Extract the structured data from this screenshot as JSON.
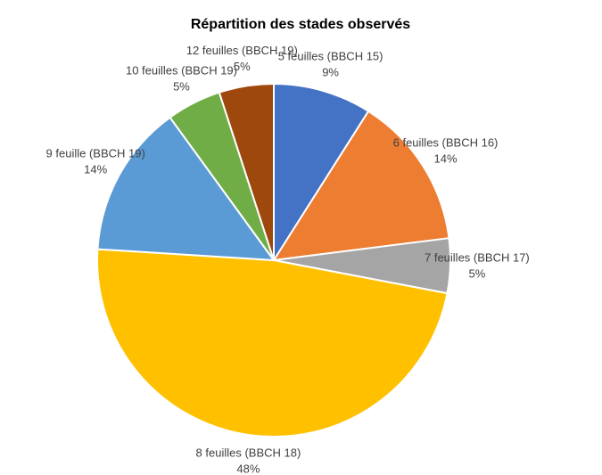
{
  "chart_data": {
    "type": "pie",
    "title": "Répartition des stades observés",
    "categories": [
      "5 feuilles (BBCH 15)",
      "6 feuilles (BBCH 16)",
      "7 feuilles (BBCH 17)",
      "8 feuilles (BBCH 18)",
      "9 feuille (BBCH 19)",
      "10 feuilles (BBCH 19)",
      "12 feuilles (BBCH 19)"
    ],
    "values": [
      9,
      14,
      5,
      48,
      14,
      5,
      5
    ],
    "value_labels": [
      "9%",
      "14%",
      "5%",
      "48%",
      "14%",
      "5%",
      "5%"
    ],
    "colors": [
      "#4472c4",
      "#ed7d31",
      "#a5a5a5",
      "#ffc000",
      "#5b9bd5",
      "#70ad47",
      "#9e480e"
    ]
  }
}
